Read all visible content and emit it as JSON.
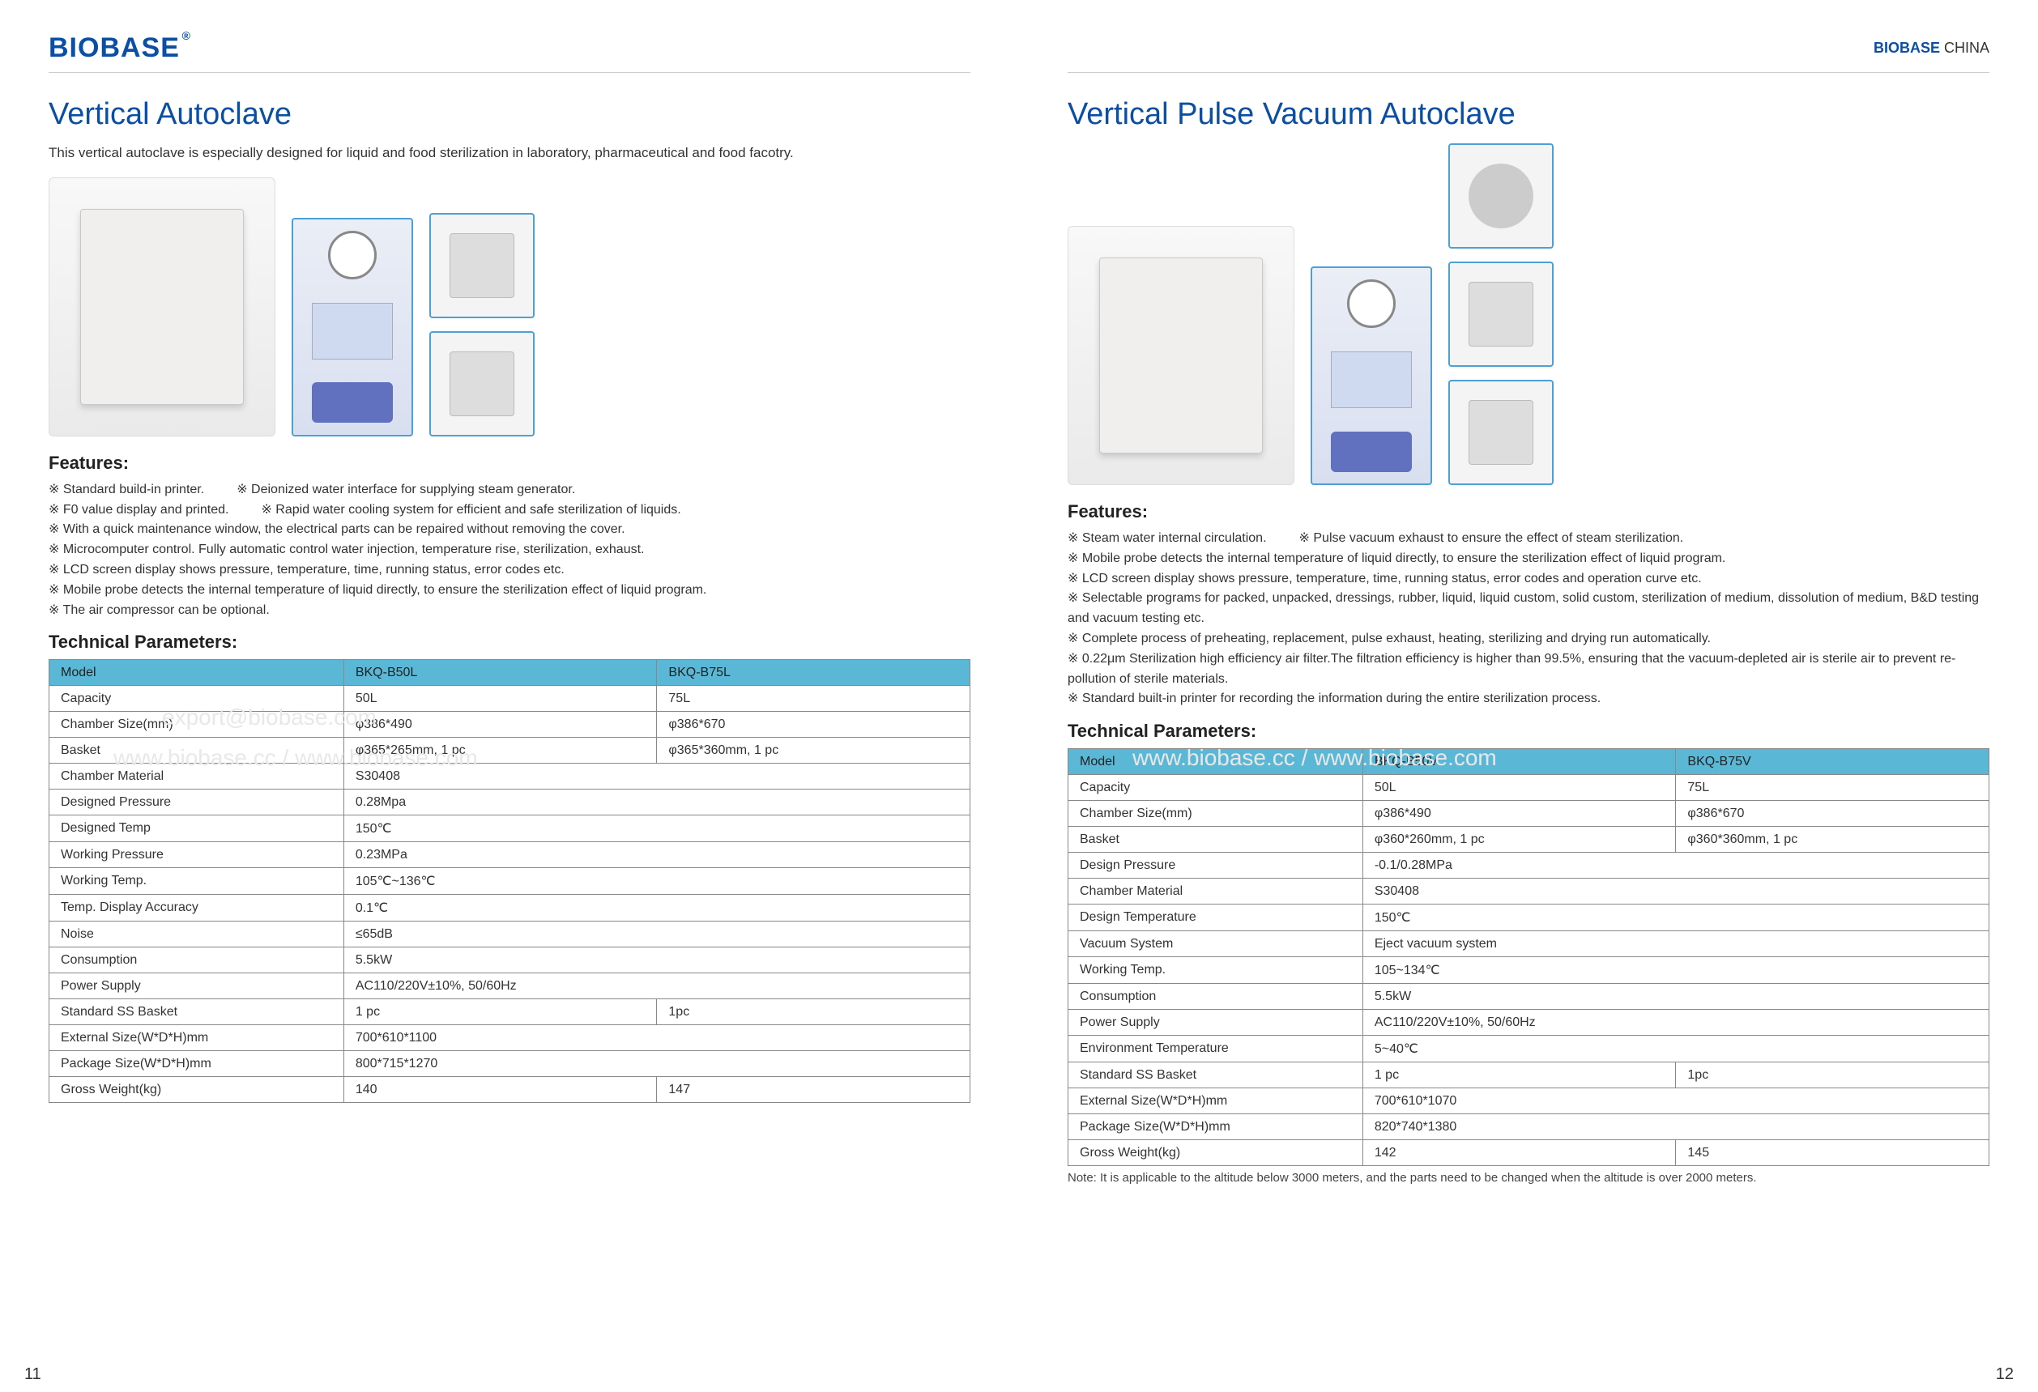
{
  "header": {
    "logo": "BIOBASE",
    "brand_prefix": "BIOBASE",
    "brand_suffix": "CHINA"
  },
  "left": {
    "title": "Vertical Autoclave",
    "subtitle": "This vertical autoclave is especially designed for liquid and food sterilization in laboratory, pharmaceutical and food facotry.",
    "features_heading": "Features:",
    "features": [
      {
        "a": "Standard build-in printer.",
        "b": "Deionized water interface for supplying steam generator."
      },
      {
        "a": "F0 value display and printed.",
        "b": "Rapid water cooling system for efficient and safe sterilization of liquids."
      },
      "With a quick maintenance window, the electrical parts can be repaired without removing the cover.",
      "Microcomputer control. Fully automatic control water injection, temperature rise, sterilization, exhaust.",
      "LCD screen display shows pressure, temperature, time, running status, error codes etc.",
      "Mobile probe detects the internal temperature of liquid directly, to ensure the sterilization effect of liquid program.",
      "The air compressor can be optional."
    ],
    "tech_heading": "Technical Parameters:",
    "table": {
      "header": [
        "Model",
        "BKQ-B50L",
        "BKQ-B75L"
      ],
      "rows": [
        [
          "Capacity",
          "50L",
          "75L"
        ],
        [
          "Chamber Size(mm)",
          "φ386*490",
          "φ386*670"
        ],
        [
          "Basket",
          "φ365*265mm, 1 pc",
          "φ365*360mm, 1 pc"
        ],
        [
          "Chamber Material",
          "S30408",
          null
        ],
        [
          "Designed Pressure",
          "0.28Mpa",
          null
        ],
        [
          "Designed Temp",
          "150℃",
          null
        ],
        [
          "Working Pressure",
          "0.23MPa",
          null
        ],
        [
          "Working Temp.",
          "105℃~136℃",
          null
        ],
        [
          "Temp. Display Accuracy",
          "0.1℃",
          null
        ],
        [
          "Noise",
          "≤65dB",
          null
        ],
        [
          "Consumption",
          "5.5kW",
          null
        ],
        [
          "Power Supply",
          "AC110/220V±10%, 50/60Hz",
          null
        ],
        [
          "Standard SS Basket",
          "1 pc",
          "1pc"
        ],
        [
          "External Size(W*D*H)mm",
          "700*610*1100",
          null
        ],
        [
          "Package Size(W*D*H)mm",
          "800*715*1270",
          null
        ],
        [
          "Gross Weight(kg)",
          "140",
          "147"
        ]
      ]
    },
    "page_num": "11"
  },
  "right": {
    "title": "Vertical Pulse Vacuum Autoclave",
    "features_heading": "Features:",
    "features": [
      {
        "a": "Steam water internal circulation.",
        "b": "Pulse vacuum exhaust to ensure the effect of steam sterilization."
      },
      "Mobile probe detects the internal temperature of liquid directly, to ensure the sterilization effect of liquid program.",
      "LCD screen display shows pressure, temperature, time, running status, error codes and operation curve etc.",
      "Selectable programs for packed, unpacked, dressings, rubber, liquid, liquid custom, solid custom, sterilization of medium, dissolution of medium, B&D testing and vacuum testing etc.",
      "Complete process of preheating, replacement, pulse exhaust, heating, sterilizing and drying run automatically.",
      "0.22μm Sterilization high efficiency air filter.The filtration efficiency is higher than 99.5%, ensuring that the vacuum-depleted air is sterile air to prevent re-pollution of sterile materials.",
      "Standard built-in printer for recording the information during the entire sterilization process."
    ],
    "tech_heading": "Technical Parameters:",
    "table": {
      "header": [
        "Model",
        "BKQ-B50V",
        "BKQ-B75V"
      ],
      "rows": [
        [
          "Capacity",
          "50L",
          "75L"
        ],
        [
          "Chamber Size(mm)",
          "φ386*490",
          "φ386*670"
        ],
        [
          "Basket",
          "φ360*260mm, 1 pc",
          "φ360*360mm, 1 pc"
        ],
        [
          "Design Pressure",
          "-0.1/0.28MPa",
          null
        ],
        [
          "Chamber Material",
          "S30408",
          null
        ],
        [
          "Design Temperature",
          "150℃",
          null
        ],
        [
          "Vacuum System",
          "Eject vacuum system",
          null
        ],
        [
          "Working Temp.",
          "105~134℃",
          null
        ],
        [
          "Consumption",
          "5.5kW",
          null
        ],
        [
          "Power Supply",
          "AC110/220V±10%, 50/60Hz",
          null
        ],
        [
          "Environment Temperature",
          "5~40℃",
          null
        ],
        [
          "Standard SS Basket",
          "1 pc",
          "1pc"
        ],
        [
          "External Size(W*D*H)mm",
          "700*610*1070",
          null
        ],
        [
          "Package Size(W*D*H)mm",
          "820*740*1380",
          null
        ],
        [
          "Gross Weight(kg)",
          "142",
          "145"
        ]
      ]
    },
    "note": "Note: It is applicable to the altitude below 3000 meters, and the parts need to be changed when the altitude is over 2000 meters.",
    "page_num": "12"
  },
  "watermarks": {
    "email": "export@biobase.com",
    "url": "www.biobase.cc / www.biobase.com"
  }
}
